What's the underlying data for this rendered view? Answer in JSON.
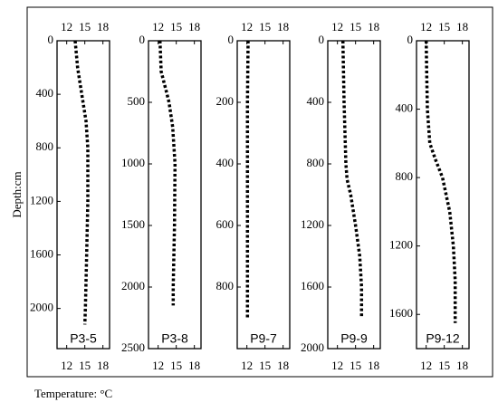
{
  "y_axis_label": "Depth:cm",
  "x_axis_label": "Temperature: °C",
  "chart_data": [
    {
      "type": "line",
      "label": "P3-5",
      "color": "#000000",
      "x": [
        13.4,
        13.8,
        14.5,
        15.2,
        15.5,
        15.5,
        15.3,
        15.1,
        15.0
      ],
      "y": [
        0,
        200,
        400,
        600,
        800,
        1200,
        1600,
        2000,
        2120
      ],
      "xlim": [
        10.4,
        19.1
      ],
      "xticks": [
        12,
        15,
        18
      ],
      "ylim": [
        0,
        2300
      ],
      "yticks": [
        0,
        400,
        800,
        1200,
        1600,
        2000
      ]
    },
    {
      "type": "line",
      "label": "P3-8",
      "color": "#000000",
      "x": [
        12.3,
        12.5,
        13.3,
        13.8,
        14.4,
        14.8,
        14.7,
        14.5,
        14.5
      ],
      "y": [
        0,
        250,
        400,
        500,
        700,
        1000,
        1500,
        2000,
        2150
      ],
      "xlim": [
        10.4,
        19.1
      ],
      "xticks": [
        12,
        15,
        18
      ],
      "ylim": [
        0,
        2500
      ],
      "yticks": [
        0,
        500,
        1000,
        1500,
        2000,
        2500
      ]
    },
    {
      "type": "line",
      "label": "P9-7",
      "color": "#000000",
      "x": [
        12.2,
        12.1,
        12.1,
        12.1,
        12.1
      ],
      "y": [
        0,
        200,
        400,
        600,
        900
      ],
      "xlim": [
        10.4,
        19.1
      ],
      "xticks": [
        12,
        15,
        18
      ],
      "ylim": [
        0,
        1000
      ],
      "yticks": [
        0,
        200,
        400,
        600,
        800
      ]
    },
    {
      "type": "line",
      "label": "P9-9",
      "color": "#000000",
      "x": [
        12.9,
        13.1,
        13.4,
        13.6,
        14.2,
        15.0,
        15.7,
        16.0,
        16.0
      ],
      "y": [
        0,
        400,
        800,
        900,
        1000,
        1200,
        1400,
        1600,
        1800
      ],
      "xlim": [
        10.4,
        19.1
      ],
      "xticks": [
        12,
        15,
        18
      ],
      "ylim": [
        0,
        2000
      ],
      "yticks": [
        0,
        400,
        800,
        1200,
        1600,
        2000
      ]
    },
    {
      "type": "line",
      "label": "P9-12",
      "color": "#000000",
      "x": [
        12.0,
        12.1,
        12.2,
        12.6,
        13.6,
        14.7,
        15.9,
        16.5,
        16.8,
        16.8
      ],
      "y": [
        0,
        200,
        400,
        600,
        700,
        800,
        1000,
        1200,
        1400,
        1650
      ],
      "xlim": [
        10.4,
        19.1
      ],
      "xticks": [
        12,
        15,
        18
      ],
      "ylim": [
        0,
        1800
      ],
      "yticks": [
        0,
        400,
        800,
        1200,
        1600
      ]
    }
  ]
}
